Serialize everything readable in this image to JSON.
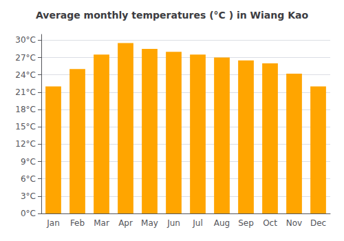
{
  "chart_data": {
    "type": "bar",
    "title": "Average monthly temperatures (°C ) in Wiang Kao",
    "categories": [
      "Jan",
      "Feb",
      "Mar",
      "Apr",
      "May",
      "Jun",
      "Jul",
      "Aug",
      "Sep",
      "Oct",
      "Nov",
      "Dec"
    ],
    "values": [
      22.0,
      25.0,
      27.5,
      29.5,
      28.5,
      28.0,
      27.5,
      27.0,
      26.5,
      26.0,
      24.2,
      22.0
    ],
    "color": "#FFA500",
    "ylim": [
      0,
      31
    ],
    "yticks": [
      {
        "value": 0,
        "label": "0°C"
      },
      {
        "value": 3,
        "label": "3°C"
      },
      {
        "value": 6,
        "label": "6°C"
      },
      {
        "value": 9,
        "label": "9°C"
      },
      {
        "value": 12,
        "label": "12°C"
      },
      {
        "value": 15,
        "label": "15°C"
      },
      {
        "value": 18,
        "label": "18°C"
      },
      {
        "value": 21,
        "label": "21°C"
      },
      {
        "value": 24,
        "label": "24°C"
      },
      {
        "value": 27,
        "label": "27°C"
      },
      {
        "value": 30,
        "label": "30°C"
      }
    ],
    "grid": true
  }
}
